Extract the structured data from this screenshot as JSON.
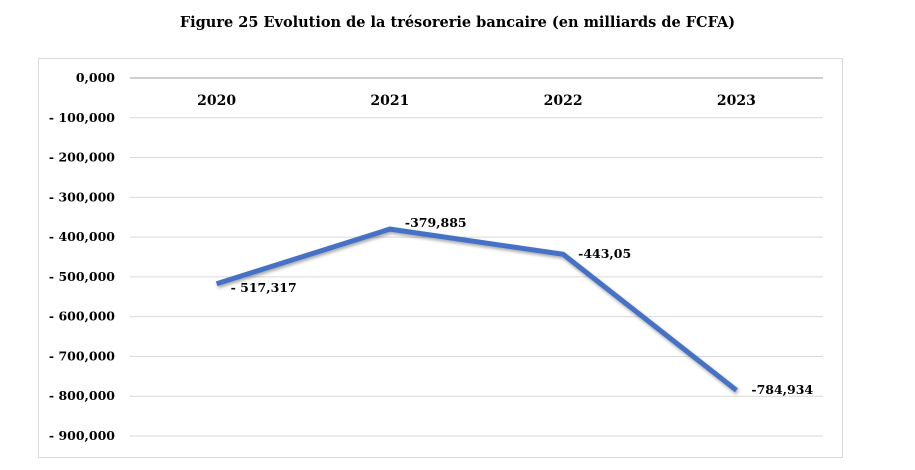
{
  "chart_data": {
    "type": "line",
    "title": "Figure 25 Evolution de la trésorerie bancaire (en milliards de FCFA)",
    "xlabel": "",
    "ylabel": "",
    "categories": [
      "2020",
      "2021",
      "2022",
      "2023"
    ],
    "values": [
      -517.317,
      -379.885,
      -443.05,
      -784.934
    ],
    "data_labels": [
      "- 517,317",
      "-379,885",
      "-443,05",
      "-784,934"
    ],
    "ylim": [
      -900,
      0
    ],
    "yticks": [
      0,
      -100,
      -200,
      -300,
      -400,
      -500,
      -600,
      -700,
      -800,
      -900
    ],
    "ytick_labels": [
      "0,000",
      "- 100,000",
      "- 200,000",
      "- 300,000",
      "- 400,000",
      "- 500,000",
      "- 600,000",
      "- 700,000",
      "- 800,000",
      "- 900,000"
    ],
    "x_axis_position": "top",
    "grid": true,
    "legend": "none",
    "line_color": "#4472c4",
    "grid_color": "#d9d9d9"
  }
}
